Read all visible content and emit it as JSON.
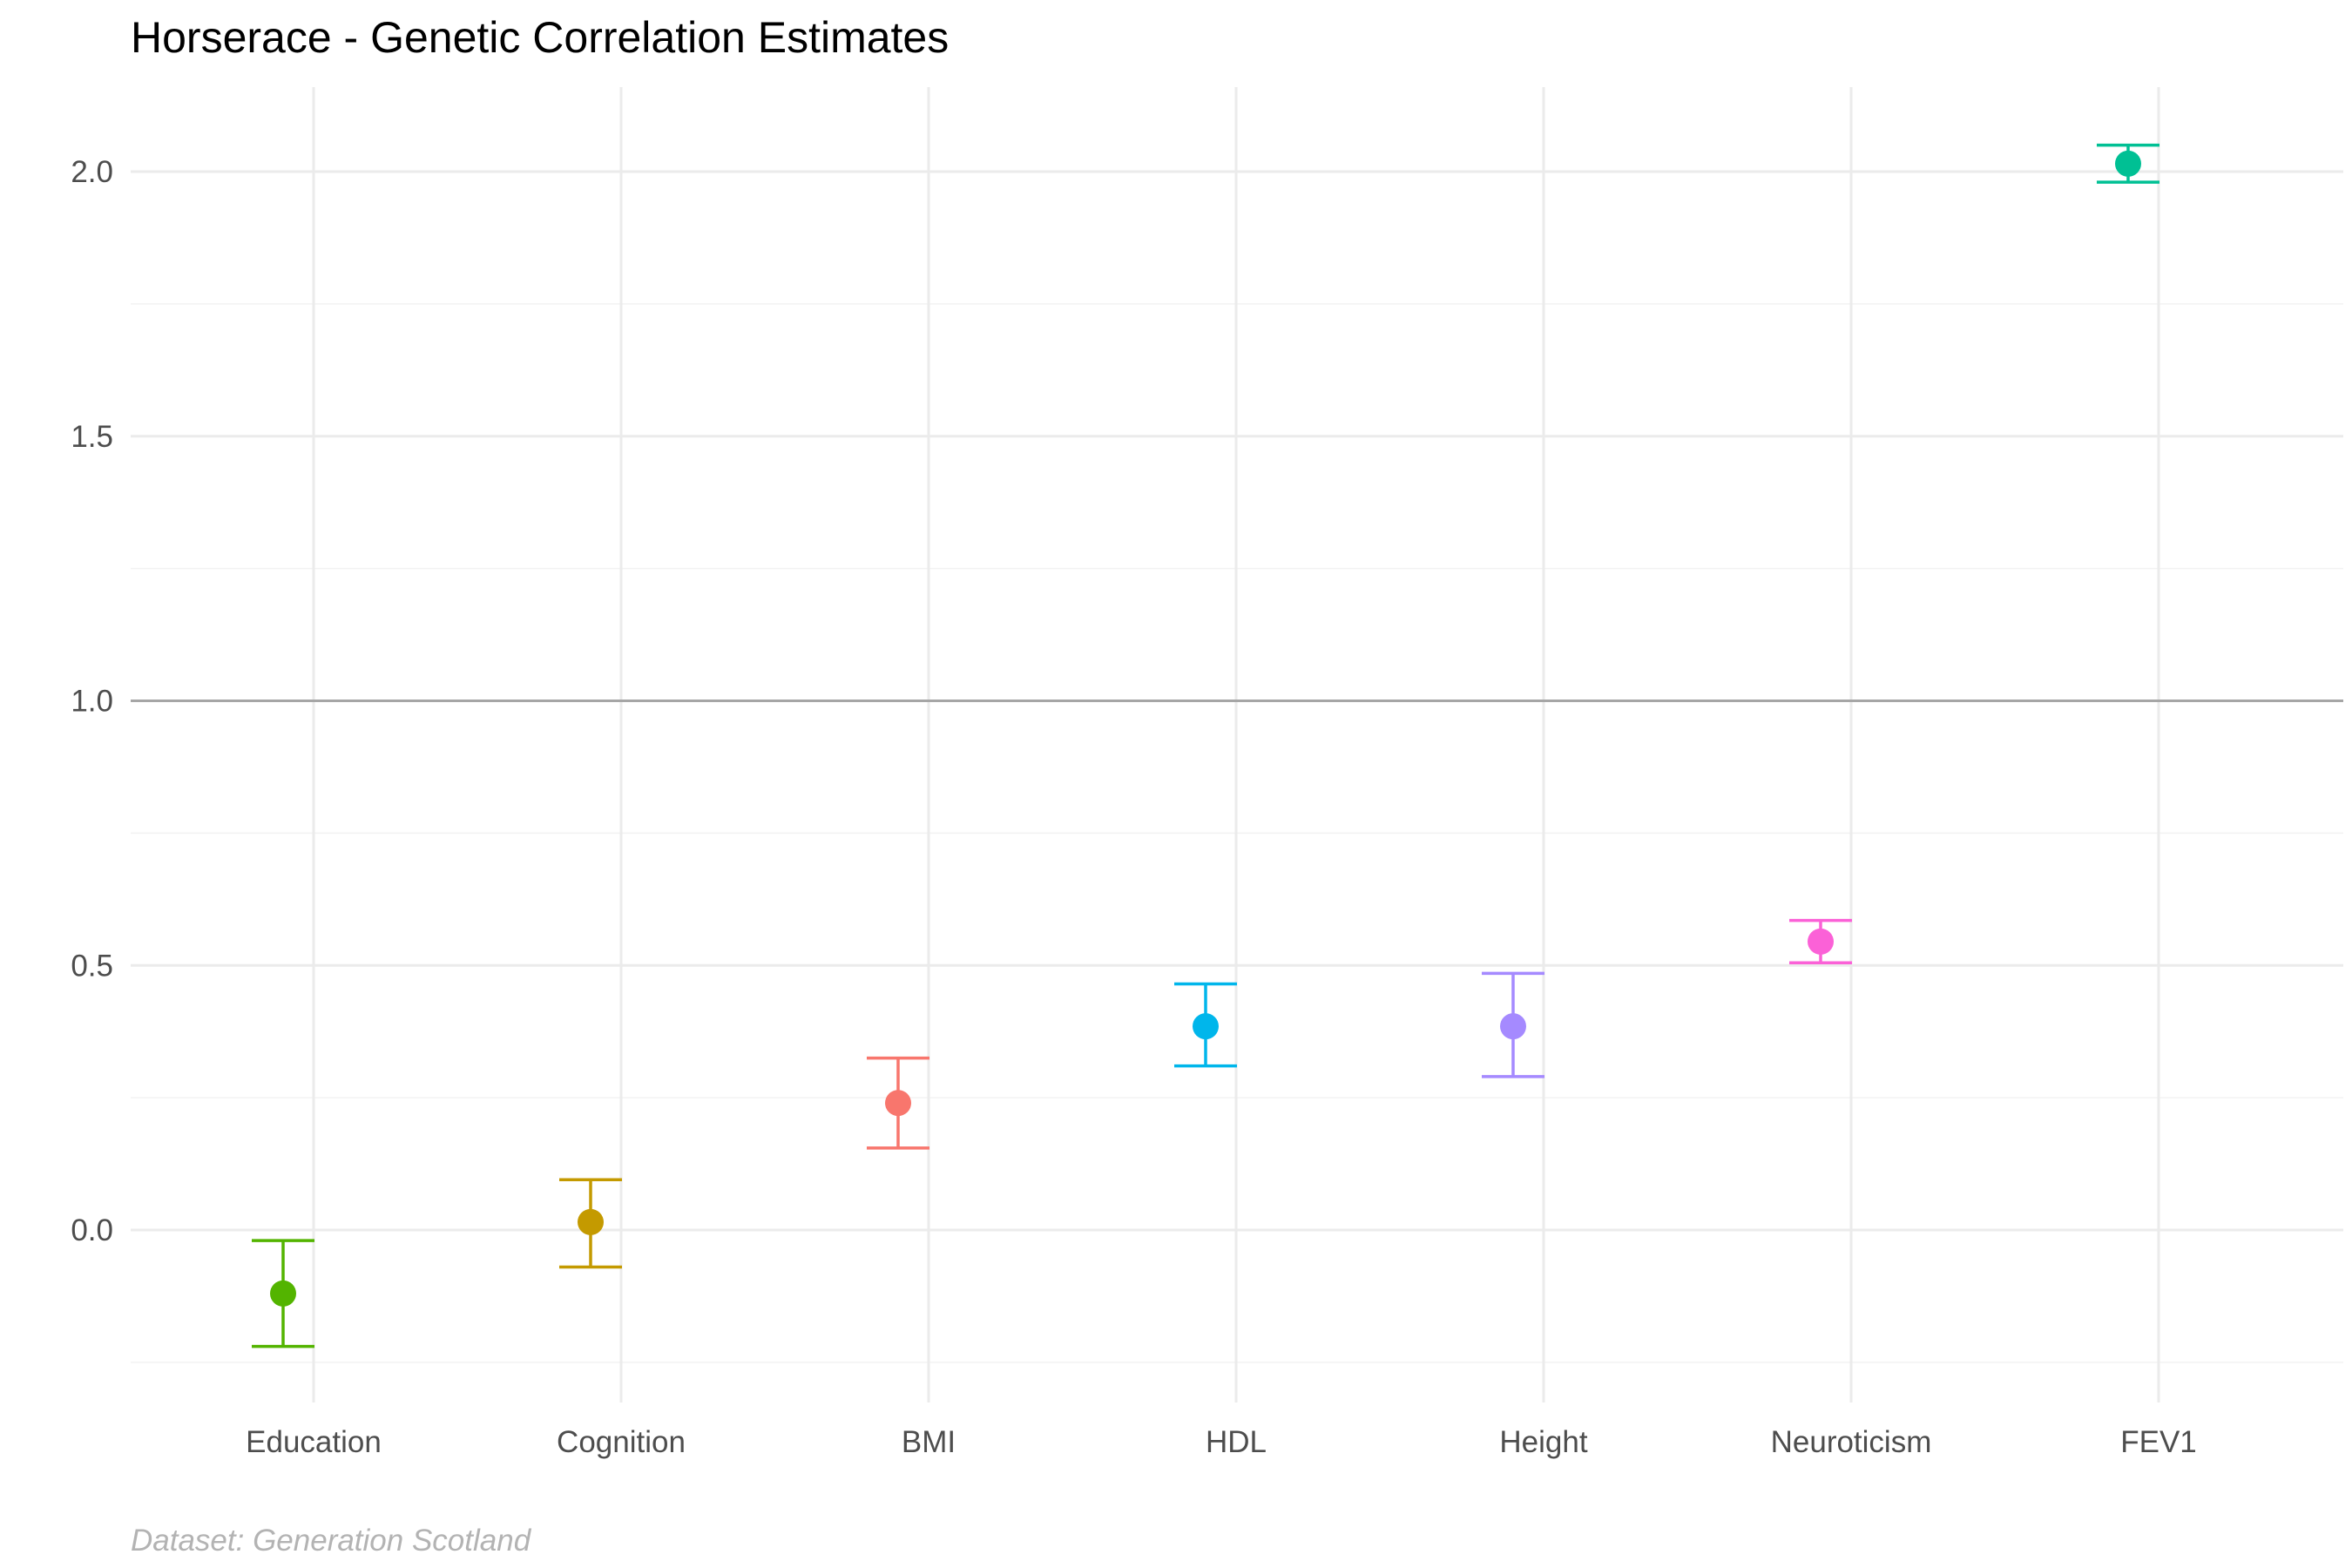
{
  "chart_data": {
    "type": "scatter",
    "title": "Horserace - Genetic Correlation Estimates",
    "caption": "Dataset: Generation Scotland",
    "xlabel": "",
    "ylabel": "",
    "ylim": [
      -0.25,
      2.15
    ],
    "y_ticks": [
      0.0,
      0.5,
      1.0,
      1.5,
      2.0
    ],
    "y_tick_labels": [
      "0.0",
      "0.5",
      "1.0",
      "1.5",
      "2.0"
    ],
    "reference_line": 1.0,
    "grid": true,
    "legend": "none",
    "categories": [
      "Education",
      "Cognition",
      "BMI",
      "HDL",
      "Height",
      "Neuroticism",
      "FEV1"
    ],
    "points": [
      {
        "category": "Education",
        "estimate": -0.12,
        "lower": -0.22,
        "upper": -0.02,
        "color": "#53B400"
      },
      {
        "category": "Cognition",
        "estimate": 0.015,
        "lower": -0.07,
        "upper": 0.095,
        "color": "#C49A00"
      },
      {
        "category": "BMI",
        "estimate": 0.24,
        "lower": 0.155,
        "upper": 0.325,
        "color": "#F8766D"
      },
      {
        "category": "HDL",
        "estimate": 0.385,
        "lower": 0.31,
        "upper": 0.465,
        "color": "#00B6EB"
      },
      {
        "category": "Height",
        "estimate": 0.385,
        "lower": 0.29,
        "upper": 0.485,
        "color": "#A58AFF"
      },
      {
        "category": "Neuroticism",
        "estimate": 0.545,
        "lower": 0.505,
        "upper": 0.585,
        "color": "#FB61D7"
      },
      {
        "category": "FEV1",
        "estimate": 2.015,
        "lower": 1.98,
        "upper": 2.05,
        "color": "#00C094"
      }
    ]
  }
}
